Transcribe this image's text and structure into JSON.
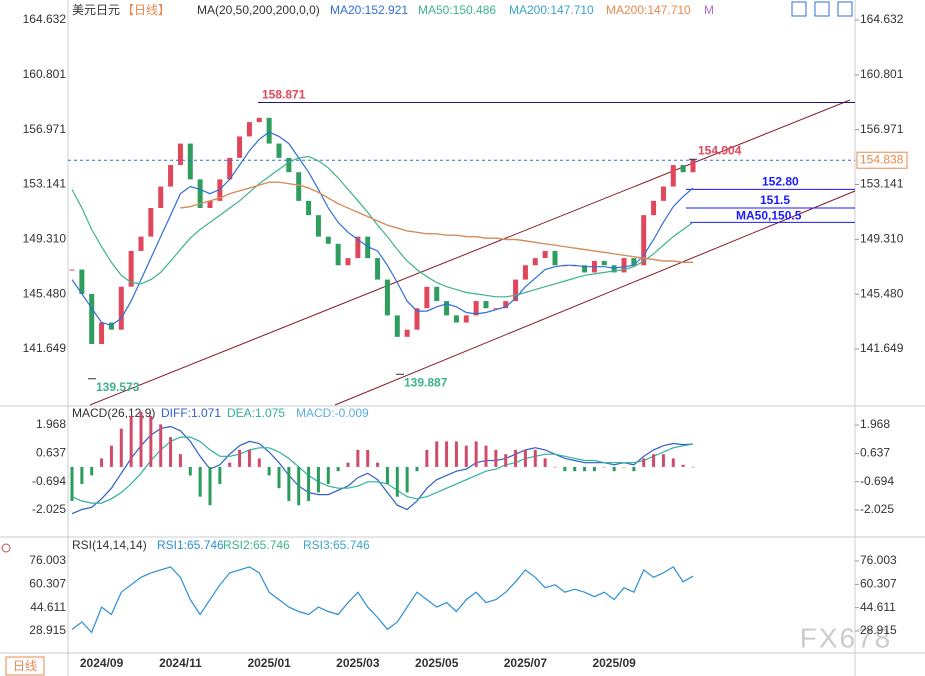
{
  "chart_data": [
    {
      "type": "line",
      "title": "美元日元",
      "subtitle": "【日线】",
      "indicator": "MA(20,50,200,200,0,0)",
      "legend_more": "M",
      "categories": [
        null,
        null,
        null,
        "2024/09",
        null,
        null,
        null,
        null,
        null,
        null,
        null,
        "2024/11",
        null,
        null,
        null,
        null,
        null,
        null,
        null,
        null,
        "2025/01",
        null,
        null,
        null,
        null,
        null,
        null,
        null,
        null,
        "2025/03",
        null,
        null,
        null,
        null,
        null,
        null,
        null,
        "2025/05",
        null,
        null,
        null,
        null,
        null,
        null,
        null,
        null,
        "2025/07",
        null,
        null,
        null,
        null,
        null,
        null,
        null,
        null,
        "2025/09",
        null,
        null,
        null,
        null,
        null,
        null,
        null,
        null
      ],
      "values": [
        147.2,
        145.5,
        142.0,
        143.5,
        143.0,
        146.0,
        148.5,
        149.5,
        151.5,
        153.0,
        154.5,
        156.0,
        153.5,
        151.5,
        152.0,
        153.5,
        155.0,
        156.5,
        157.5,
        157.8,
        156.0,
        155.0,
        154.0,
        152.0,
        151.0,
        149.5,
        149.0,
        147.5,
        148.0,
        149.5,
        148.0,
        146.5,
        144.0,
        142.5,
        143.0,
        144.5,
        146.0,
        145.0,
        144.0,
        143.5,
        144.0,
        145.0,
        144.5,
        144.5,
        145.0,
        146.5,
        147.5,
        148.0,
        148.5,
        147.5,
        147.5,
        147.5,
        147.0,
        147.8,
        147.5,
        147.0,
        148.0,
        147.5,
        151.0,
        152.0,
        153.0,
        154.5,
        154.0,
        154.9
      ],
      "up_color": "#e0475a",
      "down_color": "#2e9e5e",
      "series": [
        {
          "name": "MA20:152.921",
          "color": "#2f6fd6",
          "values": [
            146.5,
            145.5,
            144.5,
            143.5,
            143.3,
            143.8,
            145,
            146.5,
            148,
            149.5,
            151,
            152.5,
            153,
            152.8,
            152.5,
            152.8,
            153.5,
            154.5,
            155.5,
            156.3,
            156.8,
            156.5,
            156,
            155,
            154,
            152.8,
            151.5,
            150.5,
            149.8,
            149.3,
            148.8,
            148.5,
            147.5,
            146.3,
            145,
            144.3,
            144.3,
            144.6,
            144.8,
            144.6,
            144.2,
            144.1,
            144.2,
            144.4,
            144.6,
            145.2,
            146,
            146.6,
            147.2,
            147.4,
            147.5,
            147.5,
            147.4,
            147.4,
            147.4,
            147.3,
            147.4,
            147.5,
            148.2,
            149.3,
            150.5,
            151.6,
            152.3,
            152.9
          ]
        },
        {
          "name": "MA50:150.486",
          "color": "#3cb38a",
          "values": [
            152.8,
            151.5,
            150,
            148.8,
            147.7,
            146.8,
            146.3,
            146.2,
            146.5,
            147,
            147.8,
            148.6,
            149.4,
            150,
            150.5,
            151,
            151.5,
            152,
            152.6,
            153.2,
            153.7,
            154.2,
            154.7,
            155,
            155.1,
            154.8,
            154.3,
            153.6,
            152.8,
            152,
            151.2,
            150.3,
            149.5,
            148.6,
            147.8,
            147.2,
            146.7,
            146.3,
            146,
            145.8,
            145.6,
            145.5,
            145.4,
            145.3,
            145.3,
            145.4,
            145.6,
            145.8,
            146,
            146.2,
            146.4,
            146.6,
            146.8,
            146.9,
            147,
            147.1,
            147.2,
            147.4,
            147.8,
            148.3,
            148.9,
            149.5,
            150,
            150.5
          ]
        },
        {
          "name": "MA200:147.710",
          "color": "#3aa4c8",
          "values": [
            null,
            null,
            null,
            null,
            null,
            null,
            null,
            null,
            null,
            null,
            null,
            151.5,
            151.6,
            151.8,
            152,
            152.2,
            152.5,
            152.7,
            152.9,
            153.1,
            153.3,
            153.3,
            153.2,
            153.1,
            152.9,
            152.6,
            152.2,
            151.8,
            151.5,
            151.2,
            150.9,
            150.6,
            150.3,
            150.1,
            149.9,
            149.8,
            149.7,
            149.7,
            149.6,
            149.6,
            149.5,
            149.5,
            149.4,
            149.4,
            149.3,
            149.3,
            149.2,
            149.1,
            149,
            148.9,
            148.8,
            148.7,
            148.6,
            148.5,
            148.4,
            148.3,
            148.2,
            148.1,
            148,
            147.9,
            147.8,
            147.8,
            147.7,
            147.7
          ]
        },
        {
          "name": "MA200:147.710",
          "color": "#e8894b",
          "values": [
            null,
            null,
            null,
            null,
            null,
            null,
            null,
            null,
            null,
            null,
            null,
            151.5,
            151.6,
            151.8,
            152,
            152.2,
            152.5,
            152.7,
            152.9,
            153.1,
            153.3,
            153.3,
            153.2,
            153.1,
            152.9,
            152.6,
            152.2,
            151.8,
            151.5,
            151.2,
            150.9,
            150.6,
            150.3,
            150.1,
            149.9,
            149.8,
            149.7,
            149.7,
            149.6,
            149.6,
            149.5,
            149.5,
            149.4,
            149.4,
            149.3,
            149.3,
            149.2,
            149.1,
            149,
            148.9,
            148.8,
            148.7,
            148.6,
            148.5,
            148.4,
            148.3,
            148.2,
            148.1,
            148,
            147.9,
            147.8,
            147.8,
            147.7,
            147.7
          ]
        }
      ],
      "ylim": [
        137.74,
        165.68
      ],
      "yticks": [
        141.649,
        {
          "value": 145.48,
          "label": "145.480"
        },
        {
          "value": 149.31,
          "label": "149.310"
        },
        153.141,
        156.971,
        160.801,
        164.632
      ],
      "last_price": 154.838,
      "levels": [
        158.871,
        154.904,
        {
          "value": 152.8,
          "label": "152.80"
        },
        151.5,
        {
          "value": 150.5,
          "label": "MA50,150.5"
        }
      ],
      "lows": [
        139.573,
        139.887
      ]
    },
    {
      "type": "macd",
      "title": "MACD(26,12,9)",
      "series": [
        {
          "name": "DIFF:1.071",
          "color": "#2f5fc8",
          "values": [
            -2.2,
            -2.0,
            -1.9,
            -1.5,
            -1.0,
            -0.3,
            0.4,
            1.0,
            1.5,
            1.8,
            1.9,
            1.7,
            1.2,
            0.5,
            -0.1,
            0.1,
            0.6,
            1.0,
            1.2,
            1.1,
            0.7,
            0.2,
            -0.4,
            -0.9,
            -1.2,
            -1.3,
            -1.3,
            -1.1,
            -0.9,
            -0.5,
            -0.3,
            -0.6,
            -1.2,
            -1.8,
            -2.0,
            -1.6,
            -1.0,
            -0.6,
            -0.4,
            -0.2,
            -0.1,
            0.2,
            0.3,
            0.3,
            0.4,
            0.6,
            0.8,
            0.9,
            0.8,
            0.6,
            0.4,
            0.3,
            0.2,
            0.2,
            0.2,
            0.1,
            0.2,
            0.1,
            0.5,
            0.8,
            1.0,
            1.1,
            1.05,
            1.071
          ]
        },
        {
          "name": "DEA:1.075",
          "color": "#2fb0a0",
          "values": [
            -1.4,
            -1.6,
            -1.7,
            -1.7,
            -1.5,
            -1.2,
            -0.8,
            -0.3,
            0.3,
            0.8,
            1.2,
            1.4,
            1.4,
            1.2,
            0.8,
            0.5,
            0.5,
            0.6,
            0.8,
            0.9,
            0.9,
            0.7,
            0.4,
            0,
            -0.4,
            -0.7,
            -0.9,
            -1.0,
            -1.0,
            -0.9,
            -0.7,
            -0.7,
            -0.8,
            -1.1,
            -1.4,
            -1.5,
            -1.4,
            -1.2,
            -1.0,
            -0.8,
            -0.6,
            -0.4,
            -0.2,
            -0.1,
            0.1,
            0.2,
            0.4,
            0.5,
            0.6,
            0.6,
            0.5,
            0.4,
            0.3,
            0.3,
            0.2,
            0.2,
            0.2,
            0.2,
            0.3,
            0.5,
            0.7,
            0.9,
            1.0,
            1.075
          ]
        },
        {
          "name": "MACD:-0.009",
          "color": "#5aaee0",
          "up_color": "#d04a6a",
          "down_color": "#2a9d5c",
          "values": [
            -1.6,
            -0.8,
            -0.4,
            0.4,
            1.0,
            1.8,
            2.4,
            2.6,
            2.4,
            2.0,
            1.4,
            0.6,
            -0.4,
            -1.4,
            -1.8,
            -0.8,
            0.2,
            0.8,
            0.8,
            0.4,
            -0.4,
            -1.0,
            -1.6,
            -1.8,
            -1.6,
            -1.2,
            -0.8,
            -0.2,
            0.2,
            0.8,
            0.8,
            0.2,
            -0.8,
            -1.4,
            -1.2,
            -0.2,
            0.8,
            1.2,
            1.2,
            1.2,
            1.0,
            1.2,
            1.0,
            0.8,
            0.6,
            0.8,
            0.8,
            0.8,
            0.4,
            0,
            -0.2,
            -0.2,
            -0.2,
            -0.2,
            0,
            -0.2,
            0,
            -0.2,
            0.4,
            0.6,
            0.6,
            0.4,
            0.1,
            -0.009
          ]
        }
      ],
      "ylim": [
        -3.2,
        2.77
      ],
      "yticks": [
        -2.025,
        -0.694,
        0.637,
        1.968
      ]
    },
    {
      "type": "line",
      "title": "RSI(14,14,14)",
      "series": [
        {
          "name": "RSI1:65.746",
          "color": "#2a8fd6",
          "values": [
            30,
            35,
            28,
            45,
            40,
            55,
            60,
            65,
            68,
            70,
            72,
            65,
            50,
            40,
            50,
            60,
            68,
            70,
            72,
            68,
            55,
            50,
            45,
            42,
            40,
            45,
            42,
            40,
            48,
            55,
            45,
            38,
            30,
            35,
            45,
            55,
            50,
            45,
            48,
            42,
            50,
            55,
            48,
            50,
            55,
            62,
            70,
            65,
            58,
            60,
            55,
            57,
            55,
            52,
            55,
            50,
            58,
            55,
            70,
            65,
            68,
            72,
            62,
            65.746
          ]
        }
      ],
      "legend_extra": [
        {
          "name": "RSI2:65.746",
          "color": "#3cb38a"
        },
        {
          "name": "RSI3:65.746",
          "color": "#3aa4c8"
        }
      ],
      "ylim": [
        14.8,
        90.1
      ],
      "yticks": [
        28.915,
        44.611,
        60.307,
        76.003
      ]
    }
  ],
  "footer": {
    "period": "日线",
    "watermark": "FX678"
  }
}
